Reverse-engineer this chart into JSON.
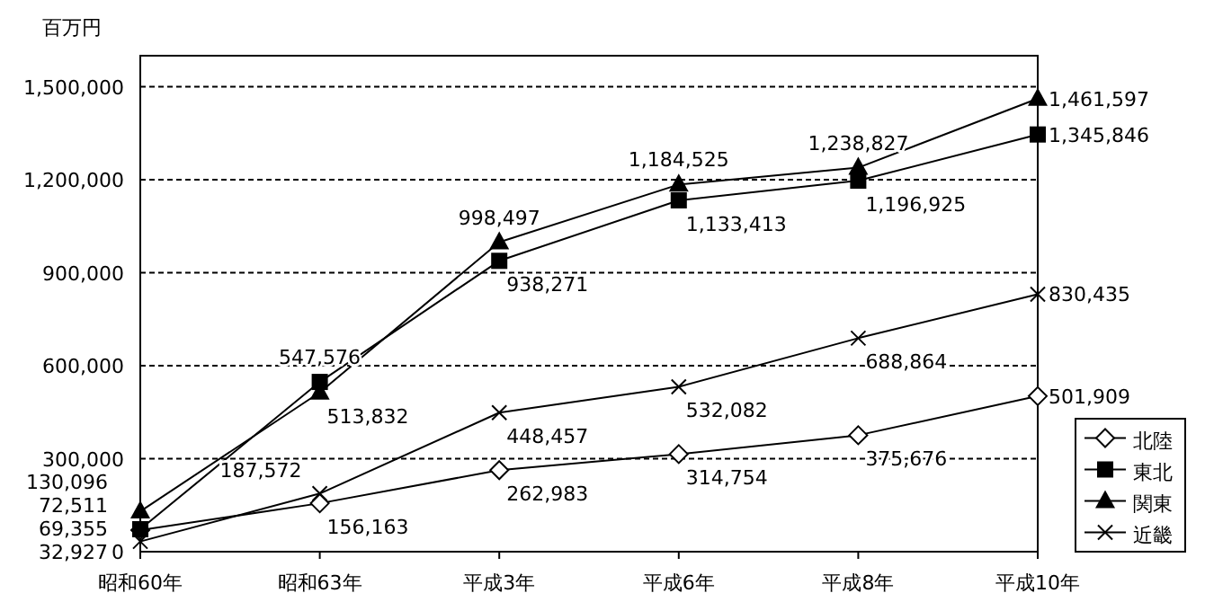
{
  "chart_data": {
    "type": "line",
    "ylabel": "百万円",
    "categories": [
      "昭和60年",
      "昭和63年",
      "平成3年",
      "平成6年",
      "平成8年",
      "平成10年"
    ],
    "series": [
      {
        "name": "北陸",
        "color": "#000000",
        "marker": "diamond",
        "values": [
          69355,
          156163,
          262983,
          314754,
          375676,
          501909
        ],
        "value_labels": [
          "69,355",
          "156,163",
          "262,983",
          "314,754",
          "375,676",
          "501,909"
        ]
      },
      {
        "name": "東北",
        "color": "#000000",
        "marker": "square",
        "values": [
          72511,
          547576,
          938271,
          1133413,
          1196925,
          1345846
        ],
        "value_labels": [
          "72,511",
          "547,576",
          "938,271",
          "1,133,413",
          "1,196,925",
          "1,345,846"
        ]
      },
      {
        "name": "関東",
        "color": "#000000",
        "marker": "triangle",
        "values": [
          130096,
          513832,
          998497,
          1184525,
          1238827,
          1461597
        ],
        "value_labels": [
          "130,096",
          "513,832",
          "998,497",
          "1,184,525",
          "1,238,827",
          "1,461,597"
        ]
      },
      {
        "name": "近畿",
        "color": "#000000",
        "marker": "cross",
        "values": [
          32927,
          187572,
          448457,
          532082,
          688864,
          830435
        ],
        "value_labels": [
          "32,927",
          "187,572",
          "448,457",
          "532,082",
          "688,864",
          "830,435"
        ]
      }
    ],
    "ylim": [
      0,
      1600000
    ],
    "yticks": [
      {
        "value": 0,
        "label": "0"
      },
      {
        "value": 300000,
        "label": "300,000"
      },
      {
        "value": 600000,
        "label": "600,000"
      },
      {
        "value": 900000,
        "label": "900,000"
      },
      {
        "value": 1200000,
        "label": "1,200,000"
      },
      {
        "value": 1500000,
        "label": "1,500,000"
      }
    ],
    "grid": "y",
    "legend": "bottom right",
    "line_style": "solid"
  }
}
